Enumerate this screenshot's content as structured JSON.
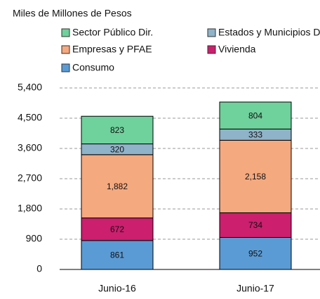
{
  "chart_data": {
    "type": "stacked_bar",
    "title": "Miles de Millones de Pesos",
    "categories": [
      "Junio-16",
      "Junio-17"
    ],
    "series": [
      {
        "name": "Consumo",
        "color": "#5b9bd5",
        "values": [
          861,
          952
        ]
      },
      {
        "name": "Vivienda",
        "color": "#cc1f6e",
        "values": [
          672,
          734
        ]
      },
      {
        "name": "Empresas y PFAE",
        "color": "#f5a97f",
        "values": [
          1882,
          2158
        ],
        "value_labels": [
          "1,882",
          "2,158"
        ]
      },
      {
        "name": "Estados y Municipios Dir",
        "color": "#8fb3c9",
        "values": [
          320,
          333
        ]
      },
      {
        "name": "Sector Público Dir.",
        "color": "#6fd19b",
        "values": [
          823,
          804
        ]
      }
    ],
    "ylim": [
      0,
      5400
    ],
    "yticks": [
      0,
      900,
      {
        "value": 1800,
        "label": "1,800"
      },
      {
        "value": 2700,
        "label": "2,700"
      },
      {
        "value": 3600,
        "label": "3,600"
      },
      {
        "value": 4500,
        "label": "4,500"
      },
      {
        "value": 5400,
        "label": "5,400"
      }
    ],
    "grid": true
  }
}
